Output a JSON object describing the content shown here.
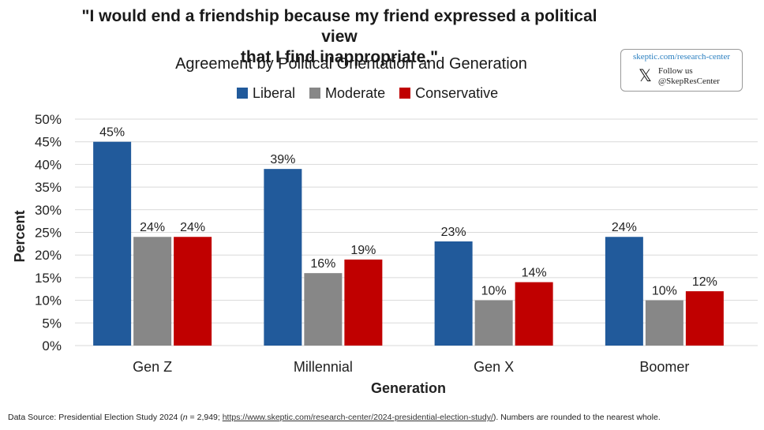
{
  "chart_data": {
    "type": "bar",
    "title_line1": "\"I would end a friendship because my friend expressed a political view",
    "title_line2": "that I find inappropriate.\"",
    "subtitle": "Agreement by Political Orientation and Generation",
    "xlabel": "Generation",
    "ylabel": "Percent",
    "ylim": [
      0,
      50
    ],
    "yticks": [
      "0%",
      "5%",
      "10%",
      "15%",
      "20%",
      "25%",
      "30%",
      "35%",
      "40%",
      "45%",
      "50%"
    ],
    "grid": true,
    "legend_position": "top",
    "categories": [
      "Gen Z",
      "Millennial",
      "Gen X",
      "Boomer"
    ],
    "series": [
      {
        "name": "Liberal",
        "color": "#215a9b",
        "values": [
          45,
          39,
          23,
          24
        ],
        "labels": [
          "45%",
          "39%",
          "23%",
          "24%"
        ]
      },
      {
        "name": "Moderate",
        "color": "#878787",
        "values": [
          24,
          16,
          10,
          10
        ],
        "labels": [
          "24%",
          "16%",
          "10%",
          "10%"
        ]
      },
      {
        "name": "Conservative",
        "color": "#c00000",
        "values": [
          24,
          19,
          14,
          12
        ],
        "labels": [
          "24%",
          "19%",
          "14%",
          "12%"
        ]
      }
    ]
  },
  "brand": {
    "url": "skeptic.com/research-center",
    "follow_line1": "Follow us",
    "follow_line2": "@SkepResCenter",
    "x_glyph": "𝕏"
  },
  "footer": {
    "prefix": "Data Source: Presidential Election Study 2024 (",
    "n_italic": "n",
    "n_value": " = 2,949; ",
    "link": "https://www.skeptic.com/research-center/2024-presidential-election-study/",
    "suffix": "). Numbers are rounded to the nearest whole."
  }
}
